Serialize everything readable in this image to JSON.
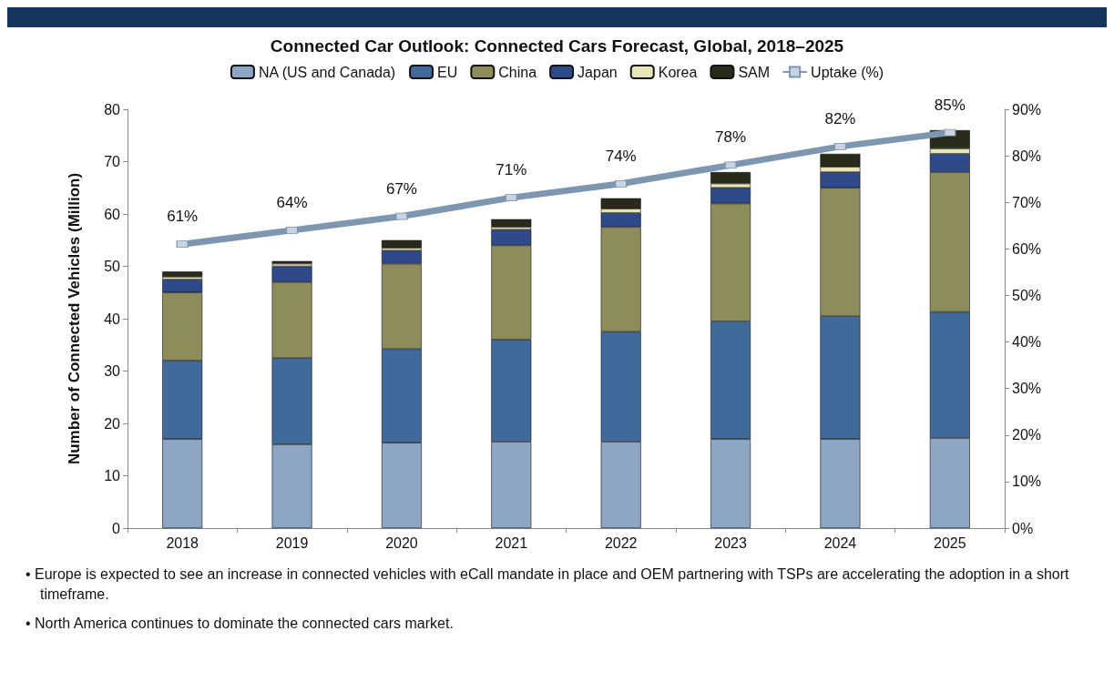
{
  "chart_data": {
    "type": "bar",
    "title": "Connected Car Outlook: Connected Cars Forecast, Global, 2018–2025",
    "ylabel": "Number of Connected Vehicles (Million)",
    "categories": [
      "2018",
      "2019",
      "2020",
      "2021",
      "2022",
      "2023",
      "2024",
      "2025"
    ],
    "stacked": true,
    "series": [
      {
        "name": "NA (US and Canada)",
        "color": "#8ea5c4",
        "values": [
          17,
          16,
          16.3,
          16.5,
          16.5,
          17,
          17,
          17.2
        ]
      },
      {
        "name": "EU",
        "color": "#3f6a9a",
        "values": [
          15,
          16.5,
          17.9,
          19.5,
          21,
          22.5,
          23.5,
          24.1
        ]
      },
      {
        "name": "China",
        "color": "#8f8c5c",
        "values": [
          13,
          14.5,
          16.3,
          18,
          20,
          22.5,
          24.5,
          26.7
        ]
      },
      {
        "name": "Japan",
        "color": "#2f4a8a",
        "values": [
          2.5,
          3,
          2.5,
          3,
          2.7,
          3,
          3,
          3.5
        ]
      },
      {
        "name": "Korea",
        "color": "#e8e6b8",
        "values": [
          0.5,
          0.5,
          0.5,
          0.5,
          0.8,
          0.8,
          1,
          1
        ]
      },
      {
        "name": "SAM",
        "color": "#2a2a1a",
        "values": [
          1,
          0.5,
          1.5,
          1.5,
          2,
          2.2,
          2.5,
          3.5
        ]
      },
      {
        "name": "Uptake (%)",
        "type": "line",
        "axis": "y2",
        "color": "#7f96b0",
        "marker": "square",
        "values": [
          61,
          64,
          67,
          71,
          74,
          78,
          82,
          85
        ],
        "value_labels": [
          "61%",
          "64%",
          "67%",
          "71%",
          "74%",
          "78%",
          "82%",
          "85%"
        ]
      }
    ],
    "ylim": [
      0,
      80
    ],
    "yticks": [
      0,
      10,
      20,
      30,
      40,
      50,
      60,
      70,
      80
    ],
    "y2lim": [
      0,
      90
    ],
    "y2ticks": [
      {
        "value": 0,
        "label": "0%"
      },
      {
        "value": 10,
        "label": "10%"
      },
      {
        "value": 20,
        "label": "20%"
      },
      {
        "value": 30,
        "label": "30%"
      },
      {
        "value": 40,
        "label": "40%"
      },
      {
        "value": 50,
        "label": "50%"
      },
      {
        "value": 60,
        "label": "60%"
      },
      {
        "value": 70,
        "label": "70%"
      },
      {
        "value": 80,
        "label": "80%"
      },
      {
        "value": 90,
        "label": "90%"
      }
    ],
    "legend": "top",
    "grid": false,
    "annotations": [
      "• Europe is expected to see an increase in connected vehicles with eCall mandate in place and OEM partnering with TSPs are accelerating the adoption in a short timeframe.",
      "• North America continues to dominate the connected cars market."
    ]
  }
}
